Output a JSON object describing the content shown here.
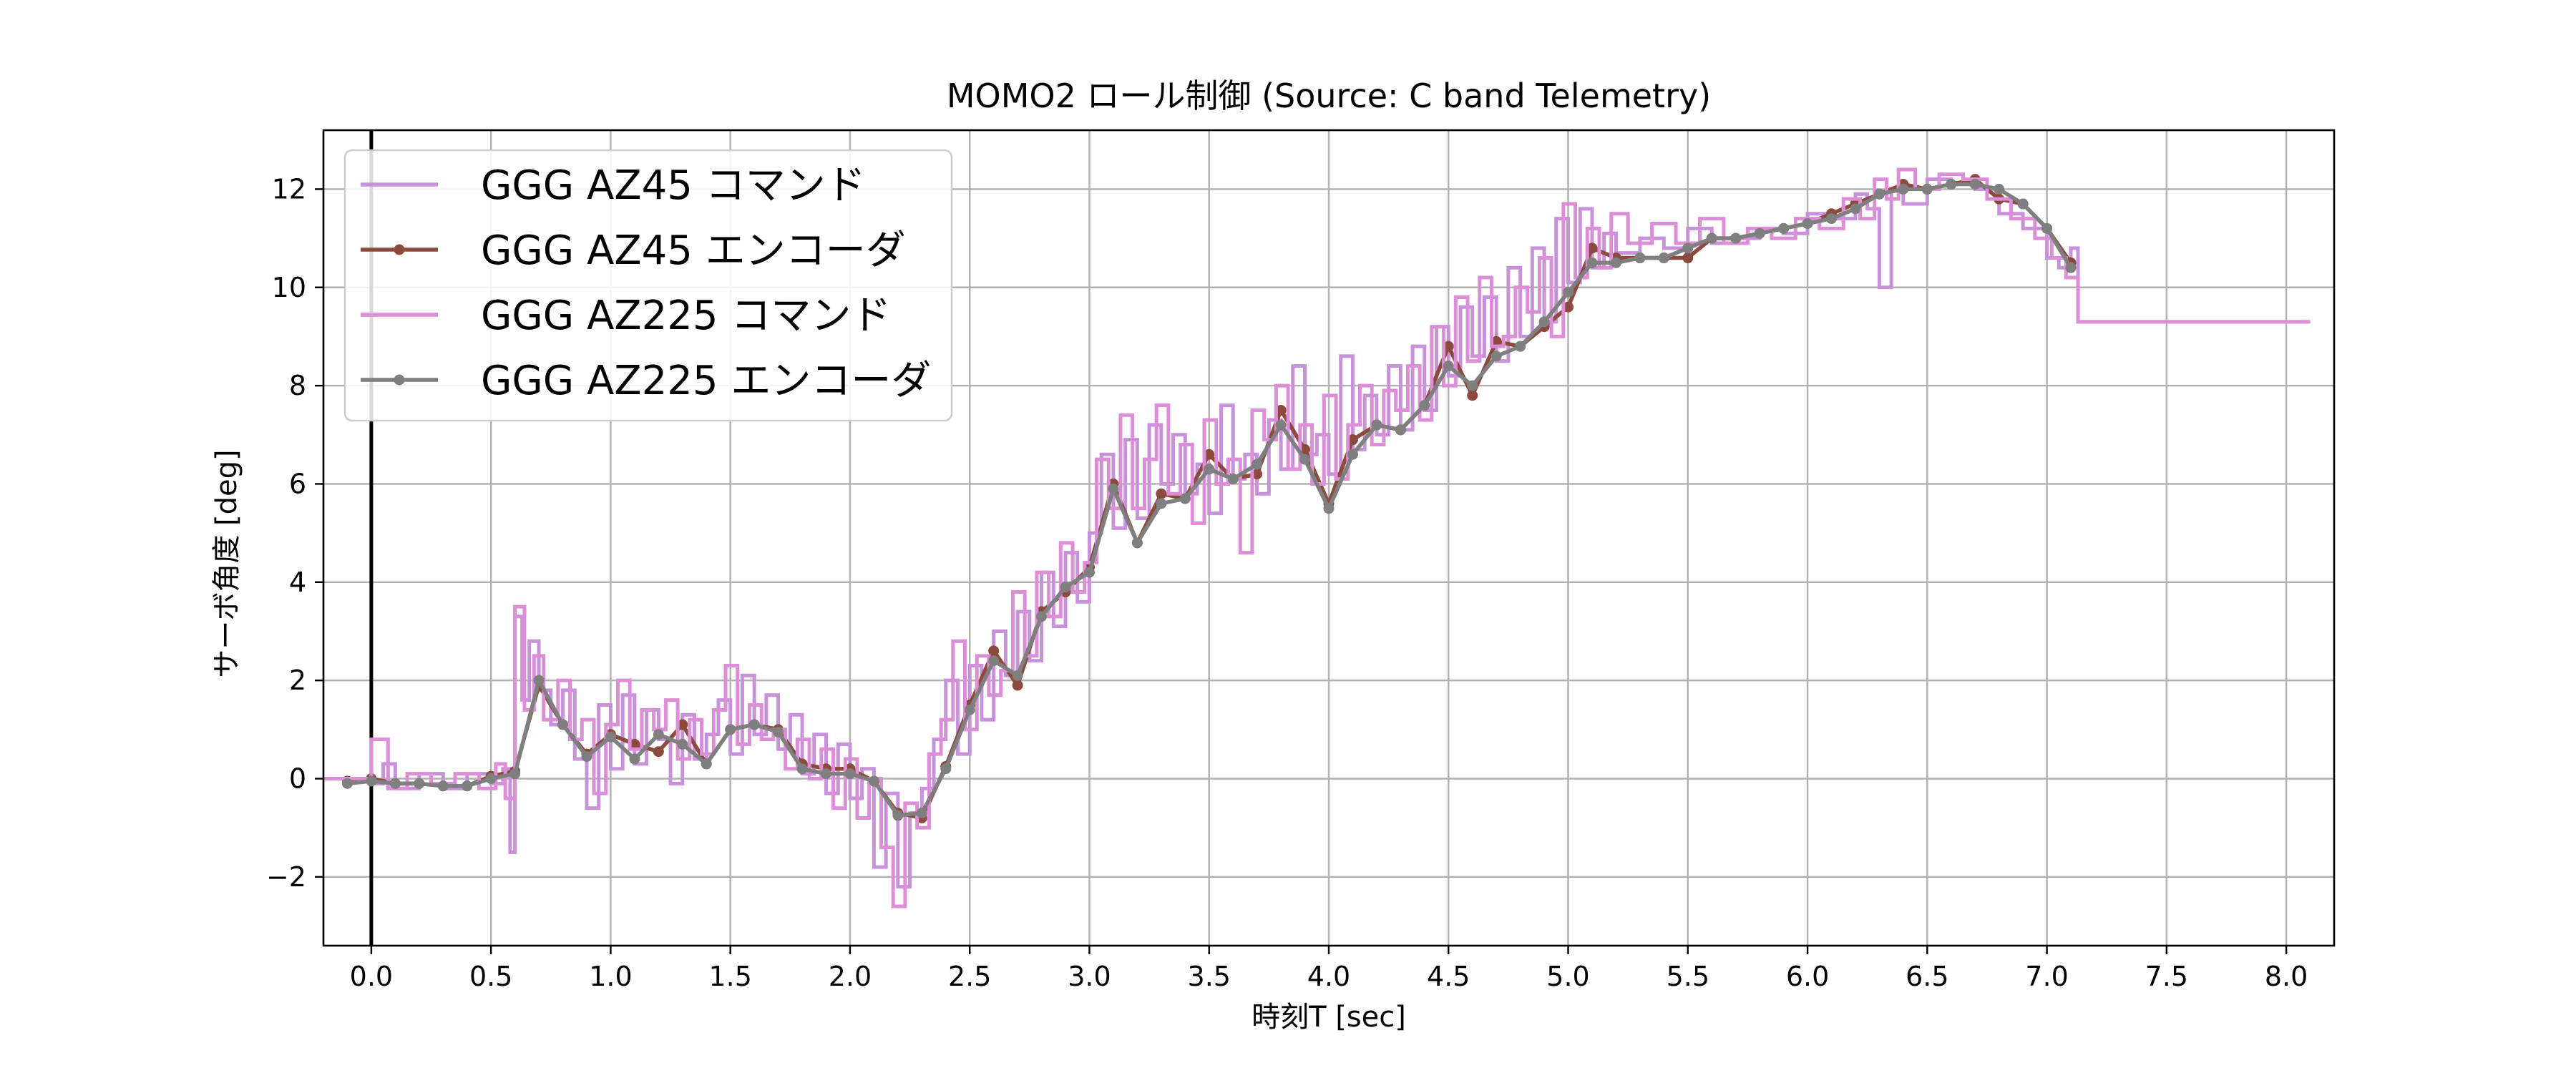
{
  "chart_data": {
    "type": "line",
    "title": "MOMO2 ロール制御 (Source: C band Telemetry)",
    "xlabel": "時刻T [sec]",
    "ylabel": "サーボ角度 [deg]",
    "xlim": [
      -0.2,
      8.2
    ],
    "ylim": [
      -3.4,
      13.2
    ],
    "xticks": [
      0.0,
      0.5,
      1.0,
      1.5,
      2.0,
      2.5,
      3.0,
      3.5,
      4.0,
      4.5,
      5.0,
      5.5,
      6.0,
      6.5,
      7.0,
      7.5,
      8.0
    ],
    "xtick_labels": [
      "0.0",
      "0.5",
      "1.0",
      "1.5",
      "2.0",
      "2.5",
      "3.0",
      "3.5",
      "4.0",
      "4.5",
      "5.0",
      "5.5",
      "6.0",
      "6.5",
      "7.0",
      "7.5",
      "8.0"
    ],
    "yticks": [
      -2,
      0,
      2,
      4,
      6,
      8,
      10,
      12
    ],
    "ytick_labels": [
      "−2",
      "0",
      "2",
      "4",
      "6",
      "8",
      "10",
      "12"
    ],
    "grid": true,
    "legend_position": "top-left",
    "vline_x": 0.0,
    "series": [
      {
        "name": "GGG AZ45 コマンド",
        "color": "#c792d9",
        "style": "step",
        "x": [
          -0.2,
          -0.1,
          0.0,
          0.05,
          0.1,
          0.2,
          0.3,
          0.4,
          0.5,
          0.55,
          0.58,
          0.6,
          0.63,
          0.66,
          0.7,
          0.75,
          0.8,
          0.85,
          0.9,
          0.95,
          1.0,
          1.05,
          1.1,
          1.15,
          1.2,
          1.25,
          1.3,
          1.35,
          1.4,
          1.45,
          1.5,
          1.55,
          1.6,
          1.65,
          1.7,
          1.75,
          1.8,
          1.85,
          1.9,
          1.95,
          2.0,
          2.05,
          2.1,
          2.15,
          2.2,
          2.25,
          2.3,
          2.35,
          2.4,
          2.45,
          2.5,
          2.55,
          2.6,
          2.65,
          2.7,
          2.75,
          2.8,
          2.85,
          2.9,
          2.95,
          3.0,
          3.05,
          3.1,
          3.15,
          3.2,
          3.25,
          3.3,
          3.35,
          3.4,
          3.45,
          3.5,
          3.55,
          3.6,
          3.65,
          3.7,
          3.75,
          3.8,
          3.85,
          3.9,
          3.95,
          4.0,
          4.05,
          4.1,
          4.15,
          4.2,
          4.25,
          4.3,
          4.35,
          4.4,
          4.45,
          4.5,
          4.55,
          4.6,
          4.65,
          4.7,
          4.75,
          4.8,
          4.85,
          4.9,
          4.95,
          5.0,
          5.05,
          5.1,
          5.15,
          5.2,
          5.3,
          5.4,
          5.5,
          5.6,
          5.7,
          5.8,
          5.9,
          6.0,
          6.1,
          6.2,
          6.25,
          6.3,
          6.35,
          6.4,
          6.5,
          6.6,
          6.7,
          6.8,
          6.9,
          7.0,
          7.05,
          7.1,
          7.13,
          8.1
        ],
        "values": [
          0.0,
          0.0,
          -0.1,
          0.3,
          -0.2,
          0.1,
          -0.2,
          0.1,
          -0.1,
          0.2,
          -1.5,
          3.3,
          1.6,
          2.8,
          1.8,
          1.1,
          1.8,
          0.4,
          -0.6,
          1.5,
          0.2,
          1.7,
          0.3,
          1.4,
          0.8,
          -0.1,
          1.3,
          0.4,
          0.9,
          1.6,
          0.5,
          2.1,
          0.9,
          1.7,
          0.6,
          1.3,
          0.1,
          0.9,
          -0.3,
          0.7,
          -0.4,
          0.2,
          -1.8,
          -0.3,
          -2.2,
          -0.7,
          -0.2,
          0.8,
          2.0,
          0.5,
          2.3,
          1.2,
          3.0,
          2.1,
          3.4,
          2.4,
          4.2,
          3.1,
          4.6,
          3.6,
          5.0,
          6.6,
          5.1,
          6.9,
          5.3,
          7.2,
          6.0,
          7.0,
          5.8,
          6.4,
          5.4,
          7.6,
          6.1,
          6.6,
          5.8,
          7.3,
          6.3,
          8.4,
          6.6,
          7.0,
          6.2,
          8.6,
          6.7,
          7.8,
          7.0,
          8.4,
          7.1,
          8.8,
          7.5,
          9.2,
          8.2,
          9.6,
          8.6,
          9.8,
          8.5,
          10.4,
          9.0,
          10.8,
          9.3,
          11.4,
          10.1,
          11.6,
          10.4,
          11.1,
          10.7,
          11.0,
          10.8,
          11.2,
          10.9,
          11.0,
          11.2,
          11.1,
          11.5,
          11.4,
          11.9,
          11.6,
          10.0,
          12.0,
          11.7,
          12.2,
          12.1,
          12.0,
          11.5,
          11.2,
          10.6,
          10.4,
          10.8,
          9.3,
          9.3
        ]
      },
      {
        "name": "GGG AZ45 エンコーダ",
        "color": "#8c4a3e",
        "style": "line-marker",
        "x": [
          -0.1,
          0.0,
          0.1,
          0.2,
          0.3,
          0.4,
          0.5,
          0.6,
          0.7,
          0.8,
          0.9,
          1.0,
          1.1,
          1.2,
          1.3,
          1.4,
          1.5,
          1.6,
          1.7,
          1.8,
          1.9,
          2.0,
          2.1,
          2.2,
          2.3,
          2.4,
          2.5,
          2.6,
          2.7,
          2.8,
          2.9,
          3.0,
          3.1,
          3.2,
          3.3,
          3.4,
          3.5,
          3.6,
          3.7,
          3.8,
          3.9,
          4.0,
          4.1,
          4.2,
          4.3,
          4.4,
          4.5,
          4.6,
          4.7,
          4.8,
          4.9,
          5.0,
          5.1,
          5.2,
          5.3,
          5.4,
          5.5,
          5.6,
          5.7,
          5.8,
          5.9,
          6.0,
          6.1,
          6.2,
          6.3,
          6.4,
          6.5,
          6.6,
          6.7,
          6.8,
          6.9,
          7.0,
          7.1
        ],
        "values": [
          -0.05,
          0.0,
          -0.1,
          -0.1,
          -0.15,
          -0.15,
          0.05,
          0.15,
          1.9,
          1.1,
          0.5,
          0.9,
          0.7,
          0.55,
          1.1,
          0.3,
          1.0,
          1.1,
          1.0,
          0.3,
          0.2,
          0.2,
          -0.05,
          -0.7,
          -0.8,
          0.25,
          1.5,
          2.6,
          1.9,
          3.4,
          3.8,
          4.3,
          6.0,
          4.8,
          5.8,
          5.7,
          6.6,
          6.1,
          6.2,
          7.5,
          6.7,
          5.6,
          6.9,
          7.2,
          7.1,
          7.6,
          8.8,
          7.8,
          8.9,
          8.8,
          9.2,
          9.6,
          10.8,
          10.6,
          10.6,
          10.6,
          10.6,
          11.0,
          11.0,
          11.1,
          11.2,
          11.3,
          11.5,
          11.7,
          11.9,
          12.1,
          12.0,
          12.1,
          12.2,
          11.8,
          11.7,
          11.2,
          10.5
        ]
      },
      {
        "name": "GGG AZ225 コマンド",
        "color": "#dc8ed6",
        "style": "step",
        "x": [
          -0.2,
          -0.1,
          0.0,
          0.07,
          0.15,
          0.25,
          0.35,
          0.45,
          0.52,
          0.56,
          0.6,
          0.64,
          0.68,
          0.72,
          0.78,
          0.83,
          0.88,
          0.93,
          0.98,
          1.03,
          1.08,
          1.13,
          1.18,
          1.23,
          1.28,
          1.33,
          1.38,
          1.43,
          1.48,
          1.53,
          1.58,
          1.63,
          1.68,
          1.73,
          1.78,
          1.83,
          1.88,
          1.93,
          1.98,
          2.03,
          2.08,
          2.13,
          2.18,
          2.23,
          2.28,
          2.33,
          2.38,
          2.43,
          2.48,
          2.53,
          2.58,
          2.63,
          2.68,
          2.73,
          2.78,
          2.83,
          2.88,
          2.93,
          2.98,
          3.03,
          3.08,
          3.13,
          3.18,
          3.23,
          3.28,
          3.33,
          3.38,
          3.43,
          3.48,
          3.53,
          3.58,
          3.63,
          3.68,
          3.73,
          3.78,
          3.83,
          3.88,
          3.93,
          3.98,
          4.03,
          4.08,
          4.13,
          4.18,
          4.23,
          4.28,
          4.33,
          4.38,
          4.43,
          4.48,
          4.53,
          4.58,
          4.63,
          4.68,
          4.73,
          4.78,
          4.83,
          4.88,
          4.93,
          4.98,
          5.03,
          5.08,
          5.13,
          5.18,
          5.25,
          5.35,
          5.45,
          5.55,
          5.65,
          5.75,
          5.85,
          5.95,
          6.05,
          6.15,
          6.22,
          6.28,
          6.33,
          6.38,
          6.45,
          6.55,
          6.65,
          6.75,
          6.85,
          6.95,
          7.02,
          7.08,
          7.13,
          8.1
        ],
        "values": [
          0.0,
          0.0,
          0.8,
          -0.2,
          0.1,
          -0.1,
          0.1,
          -0.2,
          0.3,
          -0.4,
          3.5,
          1.4,
          2.5,
          1.2,
          2.0,
          0.8,
          1.2,
          -0.3,
          1.1,
          2.0,
          0.6,
          1.4,
          1.0,
          1.6,
          0.4,
          1.2,
          0.5,
          1.4,
          2.3,
          0.7,
          1.5,
          0.8,
          1.0,
          0.2,
          0.8,
          0.0,
          0.6,
          -0.6,
          0.4,
          -0.8,
          0.0,
          -1.4,
          -2.6,
          -0.5,
          -1.0,
          0.5,
          1.2,
          2.8,
          1.0,
          2.5,
          1.7,
          2.2,
          3.8,
          2.5,
          4.2,
          3.3,
          4.8,
          3.8,
          4.4,
          6.5,
          5.5,
          7.4,
          5.5,
          6.5,
          7.6,
          5.8,
          6.8,
          5.2,
          7.3,
          6.0,
          6.5,
          4.6,
          7.5,
          6.9,
          8.0,
          6.3,
          7.2,
          6.0,
          7.8,
          6.1,
          7.2,
          8.0,
          6.8,
          7.9,
          7.5,
          8.4,
          7.3,
          9.2,
          8.0,
          9.8,
          8.5,
          10.2,
          8.8,
          9.0,
          10.0,
          9.5,
          10.6,
          9.0,
          11.7,
          10.2,
          11.2,
          10.4,
          11.5,
          10.9,
          11.3,
          10.9,
          11.4,
          10.9,
          11.2,
          11.0,
          11.4,
          11.2,
          11.8,
          11.4,
          12.2,
          11.8,
          12.4,
          12.0,
          12.3,
          12.2,
          11.8,
          11.4,
          11.0,
          10.6,
          10.2,
          9.3,
          9.3
        ]
      },
      {
        "name": "GGG AZ225 エンコーダ",
        "color": "#7f7f7f",
        "style": "line-marker",
        "x": [
          -0.1,
          0.0,
          0.1,
          0.2,
          0.3,
          0.4,
          0.5,
          0.6,
          0.7,
          0.8,
          0.9,
          1.0,
          1.1,
          1.2,
          1.3,
          1.4,
          1.5,
          1.6,
          1.7,
          1.8,
          1.9,
          2.0,
          2.1,
          2.2,
          2.3,
          2.4,
          2.5,
          2.6,
          2.7,
          2.8,
          2.9,
          3.0,
          3.1,
          3.2,
          3.3,
          3.4,
          3.5,
          3.6,
          3.7,
          3.8,
          3.9,
          4.0,
          4.1,
          4.2,
          4.3,
          4.4,
          4.5,
          4.6,
          4.7,
          4.8,
          4.9,
          5.0,
          5.1,
          5.2,
          5.3,
          5.4,
          5.5,
          5.6,
          5.7,
          5.8,
          5.9,
          6.0,
          6.1,
          6.2,
          6.3,
          6.4,
          6.5,
          6.6,
          6.7,
          6.8,
          6.9,
          7.0,
          7.1
        ],
        "values": [
          -0.1,
          -0.05,
          -0.1,
          -0.1,
          -0.15,
          -0.15,
          0.0,
          0.1,
          2.0,
          1.1,
          0.45,
          0.85,
          0.4,
          0.9,
          0.7,
          0.3,
          1.0,
          1.1,
          0.95,
          0.2,
          0.1,
          0.1,
          -0.05,
          -0.75,
          -0.7,
          0.2,
          1.4,
          2.4,
          2.1,
          3.3,
          3.9,
          4.2,
          5.9,
          4.8,
          5.6,
          5.7,
          6.3,
          6.1,
          6.4,
          7.2,
          6.5,
          5.5,
          6.6,
          7.2,
          7.1,
          7.6,
          8.4,
          8.0,
          8.6,
          8.8,
          9.3,
          9.9,
          10.5,
          10.5,
          10.6,
          10.6,
          10.8,
          11.0,
          11.0,
          11.1,
          11.2,
          11.3,
          11.4,
          11.6,
          11.9,
          12.0,
          12.0,
          12.1,
          12.1,
          12.0,
          11.7,
          11.2,
          10.4
        ]
      }
    ]
  }
}
